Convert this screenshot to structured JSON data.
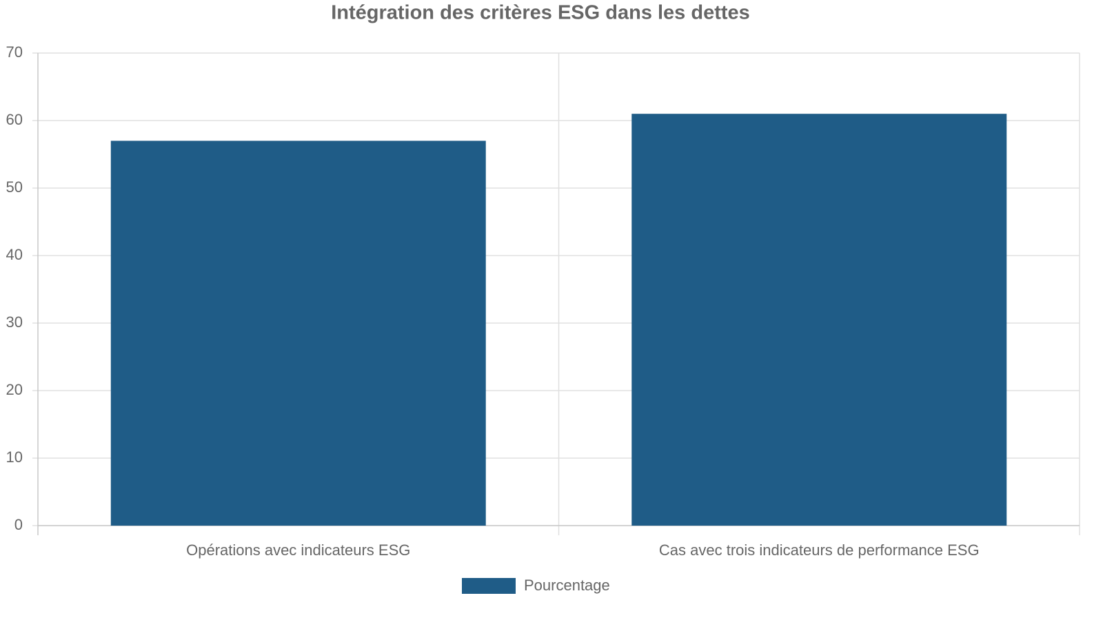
{
  "chart_data": {
    "type": "bar",
    "title": "Intégration des critères ESG dans les dettes",
    "categories": [
      "Opérations avec indicateurs ESG",
      "Cas avec trois indicateurs de performance ESG"
    ],
    "series": [
      {
        "name": "Pourcentage",
        "color": "#1f5c87",
        "values": [
          57,
          61
        ]
      }
    ],
    "ylim": [
      0,
      70
    ],
    "yticks": [
      0,
      10,
      20,
      30,
      40,
      50,
      60,
      70
    ],
    "grid": true,
    "legend": "bottom"
  }
}
